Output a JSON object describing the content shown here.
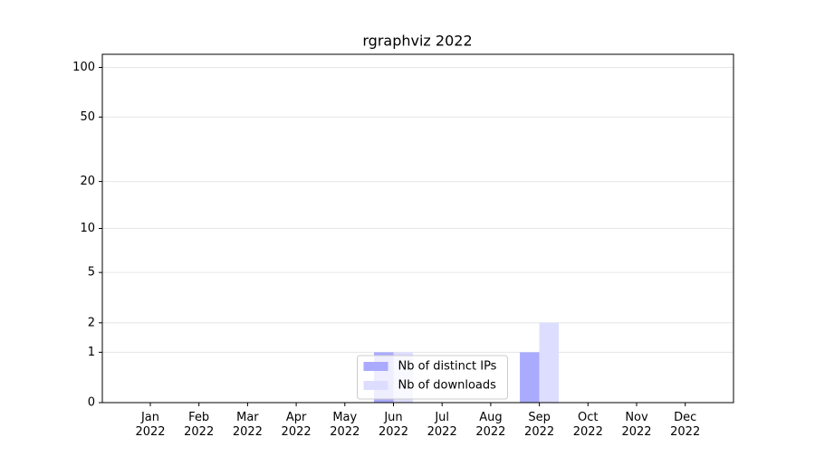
{
  "chart_data": {
    "type": "bar",
    "title": "rgraphviz 2022",
    "categories": [
      "Jan 2022",
      "Feb 2022",
      "Mar 2022",
      "Apr 2022",
      "May 2022",
      "Jun 2022",
      "Jul 2022",
      "Aug 2022",
      "Sep 2022",
      "Oct 2022",
      "Nov 2022",
      "Dec 2022"
    ],
    "series": [
      {
        "name": "Nb of distinct IPs",
        "color": "#aaaaff",
        "values": [
          0,
          0,
          0,
          0,
          0,
          1,
          0,
          0,
          1,
          0,
          0,
          0
        ]
      },
      {
        "name": "Nb of downloads",
        "color": "#ddddff",
        "values": [
          0,
          0,
          0,
          0,
          0,
          1,
          0,
          0,
          2,
          0,
          0,
          0
        ]
      }
    ],
    "yscale": "log1p",
    "ylim": [
      0,
      120
    ],
    "yticks": [
      0,
      1,
      2,
      5,
      10,
      20,
      50,
      100
    ],
    "grid": true,
    "legend": "lower center"
  }
}
